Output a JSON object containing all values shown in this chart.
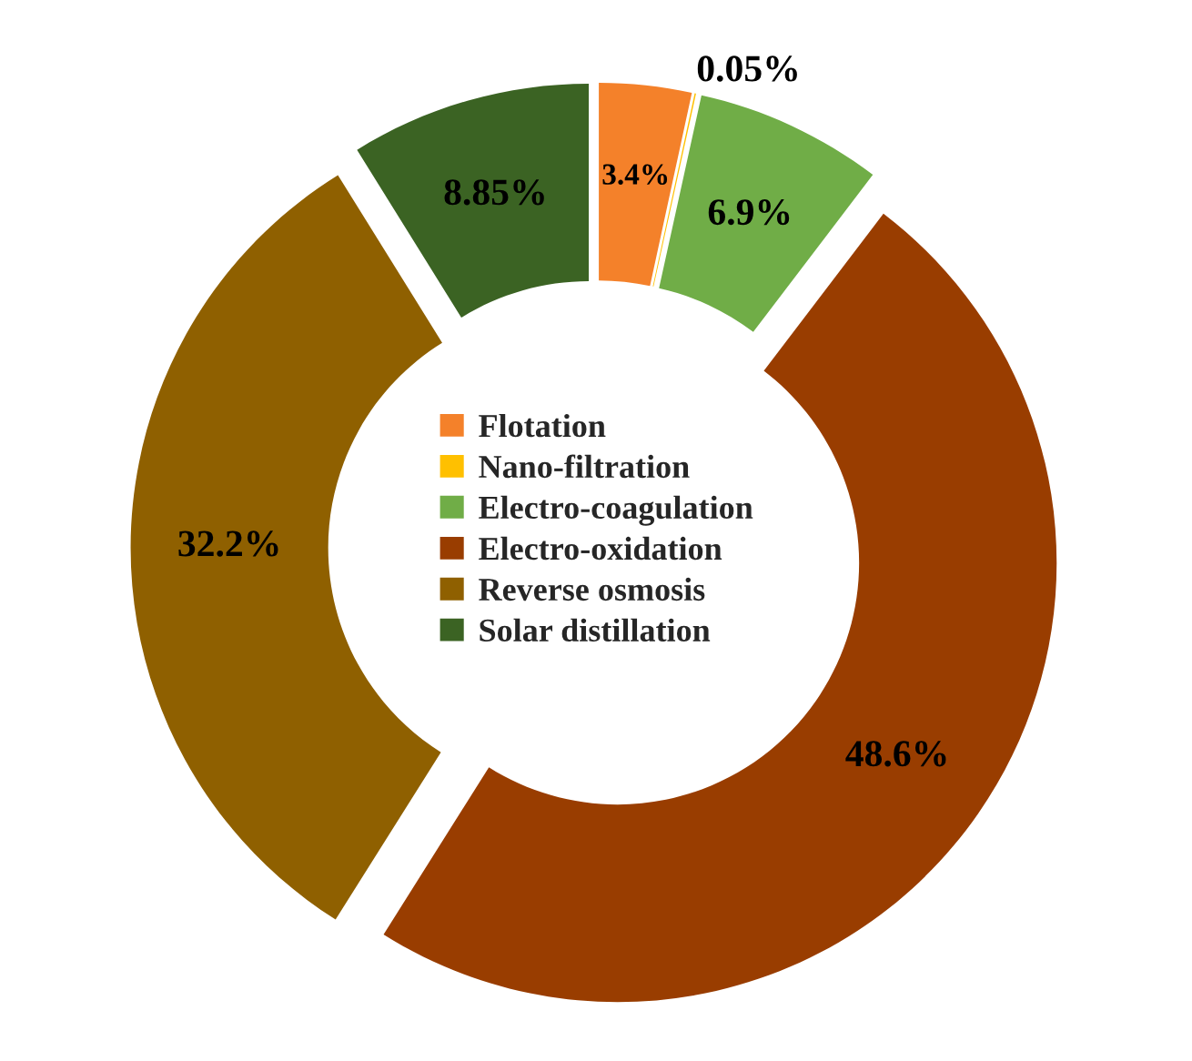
{
  "chart_data": {
    "type": "donut",
    "categories": [
      "Flotation",
      "Nano-filtration",
      "Electro-coagulation",
      "Electro-oxidation",
      "Reverse osmosis",
      "Solar distillation"
    ],
    "values": [
      3.4,
      0.05,
      6.9,
      48.6,
      32.2,
      8.85
    ],
    "colors": [
      "#f4812a",
      "#ffc000",
      "#70ad47",
      "#993d00",
      "#8f6000",
      "#3b6323"
    ],
    "value_labels": [
      "3.4%",
      "0.05%",
      "6.9%",
      "48.6%",
      "32.2%",
      "8.85%"
    ],
    "legend": "center"
  }
}
